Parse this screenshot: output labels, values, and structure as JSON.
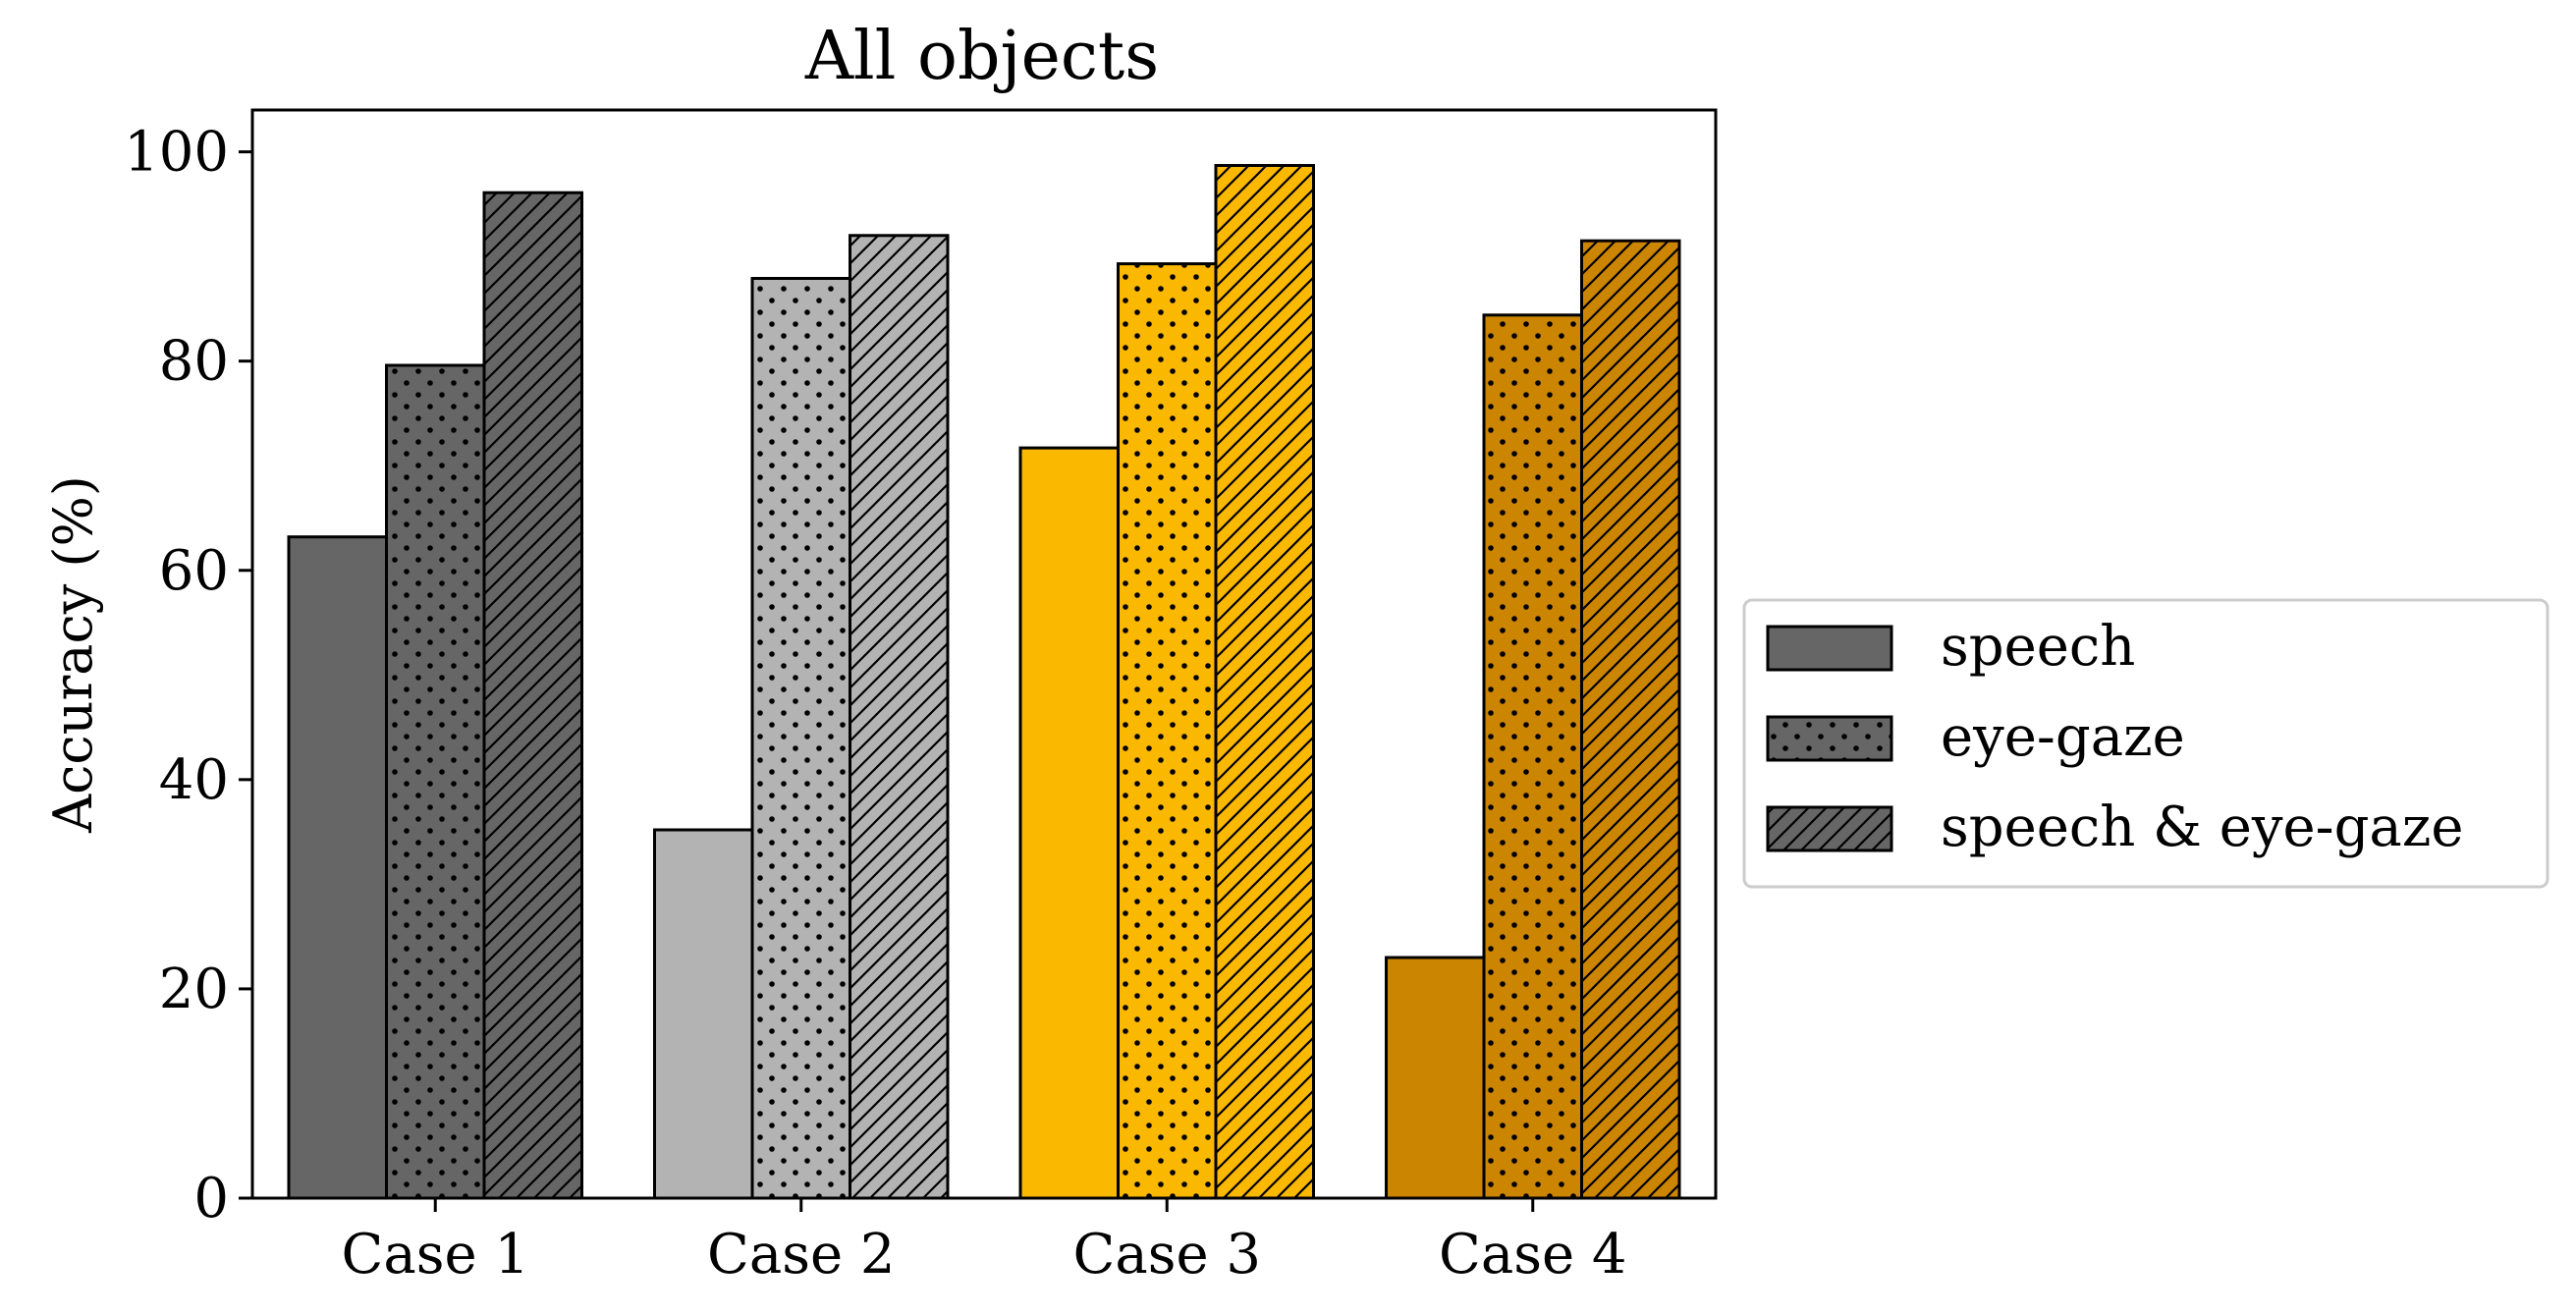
{
  "chart_data": {
    "type": "bar",
    "title": "All objects",
    "xlabel": "",
    "ylabel": "Accuracy (%)",
    "ylim": [
      0,
      104
    ],
    "yticks": [
      0,
      20,
      40,
      60,
      80,
      100
    ],
    "grid": false,
    "categories": [
      "Case 1",
      "Case 2",
      "Case 3",
      "Case 4"
    ],
    "category_colors": [
      "#666666",
      "#b3b3b3",
      "#fbb800",
      "#cc8500"
    ],
    "series": [
      {
        "name": "speech",
        "pattern": "none",
        "values": [
          63.2,
          35.2,
          71.7,
          23.0
        ]
      },
      {
        "name": "eye-gaze",
        "pattern": "dots",
        "values": [
          79.6,
          87.9,
          89.3,
          84.4
        ]
      },
      {
        "name": "speech & eye-gaze",
        "pattern": "diagonal-lines",
        "values": [
          96.1,
          92.0,
          98.7,
          91.5
        ]
      }
    ],
    "legend": {
      "placement": "right",
      "color": "#666666",
      "entries": [
        "speech",
        "eye-gaze",
        "speech & eye-gaze"
      ]
    }
  }
}
